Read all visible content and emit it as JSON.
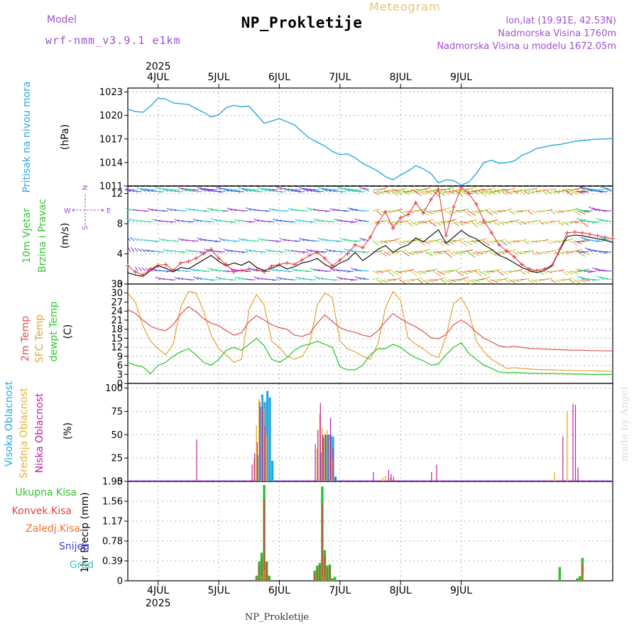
{
  "header": {
    "title": "NP_Prokletije",
    "meteogram_label": "Meteogram",
    "model_label": "Model",
    "model_name": "wrf-nmm_v3.9.1  e1km",
    "location": "lon,lat (19.91E, 42.53N)",
    "altitude": "Nadmorska Visina 1760m",
    "model_altitude": "Nadmorska Visina u modelu 1672.05m"
  },
  "footer": {
    "station": "NP_Prokletije"
  },
  "watermark": "made by Angel",
  "colors": {
    "pressure": "#2aa8e0",
    "temp2m": "#e05050",
    "sfc_temp": "#e8a030",
    "dewpoint": "#30c830",
    "high_cloud": "#20a8e8",
    "mid_cloud": "#e8b030",
    "low_cloud": "#c020a0",
    "total_precip": "#30c030",
    "conv_precip": "#e04040",
    "frozen_precip": "#f07030",
    "snow": "#4040e0",
    "graupel": "#40c8c0",
    "label_purple": "#a050d0"
  },
  "chart_data": [
    {
      "type": "line",
      "panel": "pressure",
      "ylabel": [
        "Pritisak na nivou mora",
        "(hPa)"
      ],
      "ylim": [
        1011,
        1023.5
      ],
      "yticks": [
        1011,
        1014,
        1017,
        1020,
        1023
      ],
      "x_unit": "hours since 4JUL 00",
      "x": [
        -12,
        -9,
        -6,
        -3,
        0,
        3,
        6,
        9,
        12,
        15,
        18,
        21,
        24,
        27,
        30,
        33,
        36,
        39,
        42,
        45,
        48,
        51,
        54,
        57,
        60,
        63,
        66,
        69,
        72,
        75,
        78,
        81,
        84,
        87,
        90,
        93,
        96,
        99,
        102,
        105,
        108,
        111,
        114,
        117,
        120,
        123,
        126,
        129,
        132,
        135,
        138,
        141,
        144,
        147,
        150,
        153,
        156,
        159,
        162,
        165,
        168,
        171,
        174,
        177,
        180
      ],
      "series": [
        {
          "name": "MSLP",
          "values": [
            1020.8,
            1020.5,
            1020.4,
            1021.2,
            1022.2,
            1022.1,
            1021.6,
            1021.5,
            1021.4,
            1020.9,
            1020.4,
            1019.8,
            1020.1,
            1021.0,
            1021.3,
            1021.1,
            1021.2,
            1020.1,
            1019.0,
            1019.3,
            1019.6,
            1019.2,
            1018.8,
            1017.9,
            1017.1,
            1016.6,
            1016.1,
            1015.4,
            1015.0,
            1015.1,
            1014.6,
            1013.9,
            1013.4,
            1012.9,
            1012.2,
            1011.8,
            1012.4,
            1012.9,
            1013.6,
            1013.2,
            1012.6,
            1011.4,
            1011.8,
            1011.7,
            1011.1,
            1011.5,
            1012.6,
            1014.0,
            1014.3,
            1013.9,
            1014.0,
            1014.2,
            1014.9,
            1015.3,
            1015.8,
            1016.0,
            1016.2,
            1016.3,
            1016.5,
            1016.7,
            1016.8,
            1016.9,
            1017.0,
            1017.0,
            1017.1
          ]
        }
      ]
    },
    {
      "type": "line",
      "panel": "wind",
      "ylabel": [
        "10m Vjetar",
        "Brzina i Pravac",
        "(m/s)"
      ],
      "compass": {
        "north": "N",
        "south": "S",
        "west": "W",
        "east": "E"
      },
      "ylim": [
        0,
        13
      ],
      "yticks": [
        0,
        4,
        8,
        12
      ],
      "x_unit": "hours since 4JUL 00",
      "x": [
        -12,
        -9,
        -6,
        -3,
        0,
        3,
        6,
        9,
        12,
        15,
        18,
        21,
        24,
        27,
        30,
        33,
        36,
        39,
        42,
        45,
        48,
        51,
        54,
        57,
        60,
        63,
        66,
        69,
        72,
        75,
        78,
        81,
        84,
        87,
        90,
        93,
        96,
        99,
        102,
        105,
        108,
        111,
        114,
        117,
        120,
        123,
        126,
        129,
        132,
        135,
        138,
        141,
        144,
        147,
        150,
        153,
        156,
        159,
        162,
        165,
        168,
        171,
        174,
        177,
        180
      ],
      "series": [
        {
          "name": "speed",
          "values": [
            1.5,
            1.2,
            1.0,
            1.8,
            2.4,
            2.1,
            1.6,
            2.2,
            2.0,
            2.6,
            3.2,
            3.8,
            3.0,
            2.4,
            2.8,
            2.5,
            3.0,
            2.2,
            1.8,
            2.1,
            2.5,
            2.0,
            2.3,
            2.8,
            3.0,
            3.4,
            2.6,
            2.1,
            2.8,
            3.2,
            4.2,
            3.1,
            3.8,
            4.6,
            5.1,
            4.2,
            4.8,
            5.2,
            6.1,
            5.6,
            6.4,
            7.2,
            5.4,
            6.2,
            7.1,
            6.4,
            6.0,
            5.2,
            4.6,
            3.8,
            3.4,
            2.8,
            2.2,
            1.8,
            1.5,
            1.8,
            2.4,
            4.5,
            6.3,
            6.5,
            6.4,
            6.2,
            6.0,
            5.8,
            5.5
          ]
        },
        {
          "name": "gust",
          "values": [
            2.4,
            1.6,
            1.2,
            2.0,
            2.5,
            2.6,
            1.8,
            2.8,
            3.0,
            3.4,
            4.0,
            4.6,
            3.4,
            2.6,
            1.6,
            1.8,
            2.0,
            1.9,
            1.6,
            2.4,
            2.6,
            2.8,
            2.6,
            3.2,
            3.8,
            4.2,
            3.4,
            2.4,
            3.2,
            4.0,
            5.2,
            4.8,
            6.2,
            8.1,
            9.6,
            7.4,
            8.8,
            9.2,
            10.8,
            9.4,
            11.2,
            12.6,
            6.4,
            10.2,
            12.8,
            12.0,
            10.6,
            8.4,
            6.8,
            5.2,
            4.4,
            3.6,
            2.6,
            2.0,
            1.8,
            2.0,
            2.5,
            4.6,
            6.8,
            6.9,
            6.8,
            6.6,
            6.4,
            6.2,
            6.0
          ]
        }
      ]
    },
    {
      "type": "line",
      "panel": "temperature",
      "ylabel": [
        "2m Temp",
        "SFC Temp",
        "dewpt Temp",
        "(C)"
      ],
      "ylim": [
        0,
        33
      ],
      "yticks": [
        0,
        3,
        6,
        9,
        12,
        15,
        18,
        21,
        24,
        27,
        30,
        33
      ],
      "x_unit": "hours since 4JUL 00",
      "x": [
        -12,
        -9,
        -6,
        -3,
        0,
        3,
        6,
        9,
        12,
        15,
        18,
        21,
        24,
        27,
        30,
        33,
        36,
        39,
        42,
        45,
        48,
        51,
        54,
        57,
        60,
        63,
        66,
        69,
        72,
        75,
        78,
        81,
        84,
        87,
        90,
        93,
        96,
        99,
        102,
        105,
        108,
        111,
        114,
        117,
        120,
        123,
        126,
        129,
        132,
        135,
        138,
        141,
        144,
        147,
        150,
        153,
        156,
        159,
        162,
        165,
        168,
        171,
        174,
        177,
        180
      ],
      "series": [
        {
          "name": "2m Temp",
          "values": [
            24.5,
            23.2,
            21.0,
            19.0,
            18.0,
            17.5,
            19.5,
            23.0,
            25.5,
            23.8,
            21.5,
            20.0,
            19.2,
            17.5,
            16.0,
            16.8,
            20.5,
            22.5,
            21.0,
            19.5,
            18.5,
            18.0,
            16.0,
            15.6,
            16.5,
            20.0,
            22.8,
            20.5,
            18.5,
            17.5,
            17.0,
            16.0,
            15.5,
            17.5,
            20.5,
            23.2,
            21.5,
            20.0,
            18.8,
            17.2,
            15.2,
            14.8,
            16.2,
            19.5,
            21.0,
            19.5,
            17.0,
            15.0,
            13.8,
            12.5,
            12.0,
            12.3,
            12.0,
            11.6,
            11.5,
            11.4,
            11.3,
            11.2,
            11.1,
            11.0,
            11.0,
            10.9,
            10.9,
            10.8,
            10.8
          ]
        },
        {
          "name": "SFC Temp",
          "values": [
            30.0,
            27.0,
            19.0,
            14.0,
            11.5,
            9.5,
            13.0,
            25.5,
            30.5,
            30.0,
            24.0,
            16.0,
            11.5,
            9.5,
            7.0,
            8.0,
            24.5,
            29.5,
            26.0,
            14.0,
            12.0,
            9.0,
            8.0,
            9.0,
            13.0,
            26.0,
            30.0,
            28.5,
            14.0,
            11.5,
            10.5,
            9.0,
            8.0,
            13.0,
            25.0,
            30.5,
            27.5,
            15.0,
            13.0,
            11.5,
            9.5,
            8.5,
            15.5,
            26.5,
            28.5,
            24.0,
            14.0,
            10.5,
            8.0,
            6.5,
            5.0,
            5.2,
            5.0,
            4.8,
            4.6,
            4.5,
            4.5,
            4.4,
            4.3,
            4.3,
            4.2,
            4.2,
            4.1,
            4.1,
            4.0
          ]
        },
        {
          "name": "dewpt Temp",
          "values": [
            7.0,
            6.0,
            5.5,
            3.2,
            6.0,
            7.0,
            9.0,
            10.5,
            11.5,
            9.5,
            7.0,
            6.0,
            8.0,
            11.0,
            12.0,
            11.0,
            13.0,
            15.0,
            12.5,
            8.0,
            7.0,
            8.5,
            11.0,
            12.5,
            13.0,
            14.0,
            13.0,
            12.0,
            5.5,
            4.5,
            4.5,
            6.0,
            9.5,
            11.5,
            11.5,
            13.0,
            12.0,
            10.0,
            8.5,
            7.5,
            6.0,
            6.5,
            9.5,
            12.0,
            13.5,
            10.0,
            8.0,
            6.0,
            5.0,
            3.8,
            3.5,
            3.6,
            3.5,
            3.4,
            3.4,
            3.3,
            3.3,
            3.2,
            3.2,
            3.1,
            3.1,
            3.0,
            3.0,
            3.0,
            3.0
          ]
        }
      ]
    },
    {
      "type": "bar",
      "panel": "cloud",
      "ylabel": [
        "Visoka Oblacnost",
        "Srednja Oblacnost",
        "Niska Oblacnost",
        "(%)"
      ],
      "ylim": [
        0,
        105
      ],
      "yticks": [
        0,
        25,
        50,
        75,
        100
      ],
      "x_unit": "hours since 4JUL 00",
      "series": [
        {
          "name": "Visoka Oblacnost",
          "x": [
            39,
            40,
            41,
            42,
            43,
            44,
            45,
            64,
            65,
            66,
            67,
            68,
            69,
            70
          ],
          "values": [
            28,
            80,
            93,
            85,
            97,
            90,
            22,
            31,
            47,
            50,
            50,
            50,
            48,
            5
          ]
        },
        {
          "name": "Srednja Oblacnost",
          "x": [
            38,
            39,
            40,
            41,
            42,
            43,
            63,
            64,
            65,
            66,
            67,
            68,
            69,
            89,
            90,
            92,
            157,
            162
          ],
          "values": [
            24,
            60,
            88,
            90,
            78,
            50,
            35,
            72,
            58,
            50,
            55,
            44,
            25,
            4,
            6,
            4,
            10,
            75
          ]
        },
        {
          "name": "Niska Oblacnost",
          "x": [
            15,
            37,
            38,
            39,
            40,
            41,
            42,
            62,
            63,
            64,
            65,
            66,
            67,
            68,
            69,
            70,
            85,
            91,
            92,
            93,
            108,
            110,
            160,
            164,
            165,
            166
          ],
          "values": [
            45,
            18,
            30,
            42,
            85,
            80,
            60,
            40,
            55,
            84,
            50,
            50,
            50,
            68,
            35,
            5,
            10,
            12,
            8,
            5,
            10,
            18,
            48,
            83,
            82,
            15
          ]
        }
      ]
    },
    {
      "type": "bar",
      "panel": "precip",
      "ylabel": [
        "1hr Precip (mm)"
      ],
      "legend_labels": [
        "Ukupna Kisa",
        "Konvek.Kisa",
        "Zaledj.Kisa",
        "Snijeg",
        "Grad"
      ],
      "ylim": [
        0,
        1.95
      ],
      "yticks": [
        0,
        0.39,
        0.78,
        1.17,
        1.56,
        1.95
      ],
      "x_unit": "hours since 4JUL 00",
      "series": [
        {
          "name": "Ukupna Kisa",
          "x": [
            38,
            39,
            40,
            41,
            42,
            43,
            44,
            62,
            63,
            64,
            65,
            66,
            67,
            68,
            69,
            70,
            159,
            166,
            167,
            168
          ],
          "values": [
            0.02,
            0.1,
            0.38,
            0.55,
            1.88,
            0.38,
            0.1,
            0.2,
            0.3,
            0.35,
            1.85,
            0.6,
            0.3,
            0.32,
            0.05,
            0.08,
            0.27,
            0.05,
            0.09,
            0.45
          ]
        },
        {
          "name": "Konvek.Kisa",
          "x": [
            39,
            40,
            41,
            42,
            43,
            44,
            62,
            63,
            64,
            65,
            66,
            67,
            68,
            166,
            168
          ],
          "values": [
            0.05,
            0.3,
            0.45,
            1.6,
            0.35,
            0.08,
            0.15,
            0.25,
            0.3,
            1.5,
            0.5,
            0.25,
            0.28,
            0.04,
            0.35
          ]
        },
        {
          "name": "Zaledj.Kisa",
          "x": [
            41,
            42,
            65,
            66,
            168
          ],
          "values": [
            0.1,
            0.2,
            0.1,
            0.08,
            0.12
          ]
        },
        {
          "name": "Snijeg",
          "x": [],
          "values": []
        },
        {
          "name": "Grad",
          "x": [],
          "values": []
        }
      ]
    }
  ],
  "x_axis": {
    "year": "2025",
    "day_labels": [
      "4JUL",
      "5JUL",
      "6JUL",
      "7JUL",
      "8JUL",
      "9JUL"
    ],
    "day_hours": [
      0,
      24,
      48,
      72,
      96,
      120
    ],
    "range_hours": [
      -12,
      180
    ]
  }
}
